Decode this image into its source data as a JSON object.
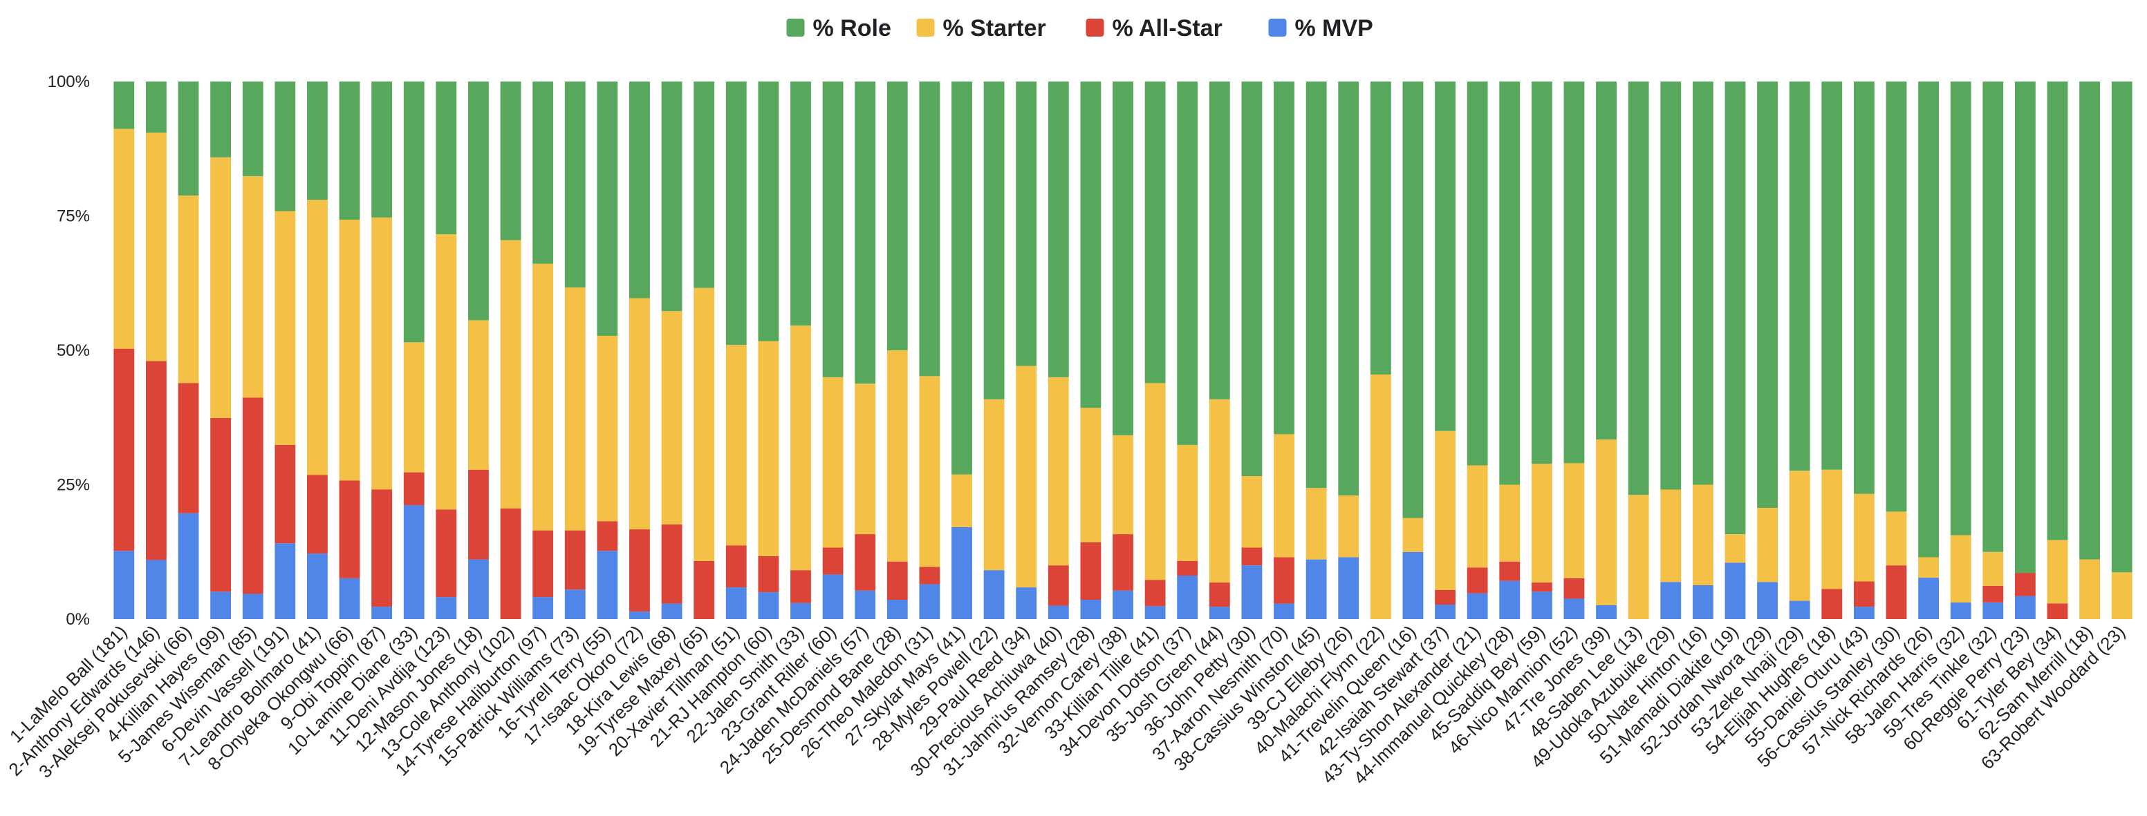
{
  "chart_data": {
    "type": "bar",
    "stacked": true,
    "categories": [
      "1-LaMelo Ball (181)",
      "2-Anthony Edwards (146)",
      "3-Aleksej Pokusevski (66)",
      "4-Killian Hayes (99)",
      "5-James Wiseman (85)",
      "6-Devin Vassell (191)",
      "7-Leandro Bolmaro (41)",
      "8-Onyeka Okongwu (66)",
      "9-Obi Toppin (87)",
      "10-Lamine Diane (33)",
      "11-Deni Avdija (123)",
      "12-Mason Jones (18)",
      "13-Cole Anthony (102)",
      "14-Tyrese Haliburton (97)",
      "15-Patrick Williams (73)",
      "16-Tyrell Terry (55)",
      "17-Isaac Okoro (72)",
      "18-Kira Lewis (68)",
      "19-Tyrese Maxey (65)",
      "20-Xavier Tillman (51)",
      "21-RJ Hampton (60)",
      "22-Jalen Smith (33)",
      "23-Grant Riller (60)",
      "24-Jaden McDaniels (57)",
      "25-Desmond Bane (28)",
      "26-Theo Maledon (31)",
      "27-Skylar Mays (41)",
      "28-Myles Powell (22)",
      "29-Paul Reed (34)",
      "30-Precious Achiuwa (40)",
      "31-Jahmi'us Ramsey (28)",
      "32-Vernon Carey (38)",
      "33-Killian Tillie (41)",
      "34-Devon Dotson (37)",
      "35-Josh Green (44)",
      "36-John Petty (30)",
      "37-Aaron Nesmith (70)",
      "38-Cassius Winston (45)",
      "39-CJ Elleby (26)",
      "40-Malachi Flynn (22)",
      "41-Trevelin Queen (16)",
      "42-Isaiah Stewart (37)",
      "43-Ty-Shon Alexander (21)",
      "44-Immanuel Quickley (28)",
      "45-Saddiq Bey (59)",
      "46-Nico Mannion (52)",
      "47-Tre Jones (39)",
      "48-Saben Lee (13)",
      "49-Udoka Azubuike (29)",
      "50-Nate Hinton (16)",
      "51-Mamadi Diakite (19)",
      "52-Jordan Nwora (29)",
      "53-Zeke Nnaji (29)",
      "54-Elijah Hughes (18)",
      "55-Daniel Oturu (43)",
      "56-Cassius Stanley (30)",
      "57-Nick Richards (26)",
      "58-Jalen Harris (32)",
      "59-Tres Tinkle (32)",
      "60-Reggie Perry (23)",
      "61-Tyler Bey (34)",
      "62-Sam Merrill (18)",
      "63-Robert Woodard (23)"
    ],
    "series": [
      {
        "name": "% MVP",
        "color": "#4f86e8",
        "values": [
          12.7,
          11.0,
          19.7,
          5.1,
          4.7,
          14.1,
          12.2,
          7.6,
          2.3,
          21.2,
          4.1,
          11.1,
          0,
          4.1,
          5.5,
          12.7,
          1.4,
          2.9,
          0,
          5.9,
          5.0,
          3.0,
          8.3,
          5.3,
          3.6,
          6.5,
          17.1,
          9.1,
          5.9,
          2.5,
          3.6,
          5.3,
          2.4,
          8.1,
          2.3,
          10.0,
          2.9,
          11.1,
          11.5,
          0,
          12.5,
          2.7,
          4.8,
          7.1,
          5.1,
          3.8,
          2.6,
          0,
          6.9,
          6.3,
          10.5,
          6.9,
          3.4,
          0,
          2.3,
          0,
          7.7,
          3.1,
          3.1,
          4.3,
          0,
          0,
          0
        ]
      },
      {
        "name": "% All-Star",
        "color": "#db4437",
        "values": [
          37.6,
          37.0,
          24.2,
          32.3,
          36.5,
          18.3,
          14.6,
          18.2,
          21.8,
          6.1,
          16.3,
          16.7,
          20.6,
          12.4,
          11.0,
          5.5,
          15.3,
          14.7,
          10.8,
          7.8,
          6.7,
          6.1,
          5.0,
          10.5,
          7.1,
          3.2,
          0,
          0,
          0,
          7.5,
          10.7,
          10.5,
          4.9,
          2.7,
          4.5,
          3.3,
          8.6,
          0,
          0,
          0,
          0,
          2.7,
          4.8,
          3.6,
          1.7,
          3.8,
          0,
          0,
          0,
          0,
          0,
          0,
          0,
          5.6,
          4.7,
          10.0,
          0,
          0,
          3.1,
          4.3,
          2.9,
          0,
          0
        ]
      },
      {
        "name": "% Starter",
        "color": "#f4c045",
        "values": [
          40.9,
          42.5,
          34.9,
          48.5,
          41.2,
          43.5,
          51.2,
          48.5,
          50.6,
          24.2,
          51.2,
          27.8,
          49.9,
          49.6,
          45.2,
          34.5,
          43.0,
          39.7,
          50.8,
          37.3,
          40.0,
          45.5,
          31.7,
          28.0,
          39.3,
          35.5,
          9.8,
          31.8,
          41.2,
          35.0,
          25.0,
          18.4,
          36.6,
          21.6,
          34.1,
          13.3,
          22.9,
          13.3,
          11.5,
          45.5,
          6.3,
          29.6,
          19.0,
          14.3,
          22.1,
          21.4,
          30.8,
          23.1,
          17.2,
          18.7,
          5.3,
          13.8,
          24.2,
          22.2,
          16.3,
          10.0,
          3.8,
          12.5,
          6.3,
          0,
          11.8,
          11.1,
          8.7
        ]
      },
      {
        "name": "% Role",
        "color": "#57a75c",
        "values": [
          8.8,
          9.5,
          21.2,
          14.1,
          17.6,
          24.1,
          22.0,
          25.7,
          25.3,
          48.5,
          28.4,
          44.4,
          29.5,
          33.9,
          38.3,
          47.3,
          40.3,
          42.7,
          38.4,
          49.0,
          48.3,
          45.4,
          55.0,
          56.2,
          50.0,
          54.8,
          73.1,
          59.1,
          52.9,
          55.0,
          60.7,
          65.8,
          56.1,
          67.6,
          59.1,
          73.4,
          65.6,
          75.6,
          77.0,
          54.5,
          81.2,
          65.0,
          71.4,
          75.0,
          71.1,
          71.0,
          66.6,
          76.9,
          75.9,
          75.0,
          84.2,
          79.3,
          72.4,
          72.2,
          76.7,
          80.0,
          88.5,
          84.4,
          87.5,
          91.4,
          85.3,
          88.9,
          91.3
        ]
      }
    ],
    "legend_order": [
      "% Role",
      "% Starter",
      "% All-Star",
      "% MVP"
    ],
    "legend_position": "top-center",
    "ylim": [
      0,
      100
    ],
    "y_ticks": [
      "0%",
      "25%",
      "50%",
      "75%",
      "100%"
    ],
    "grid": false
  }
}
